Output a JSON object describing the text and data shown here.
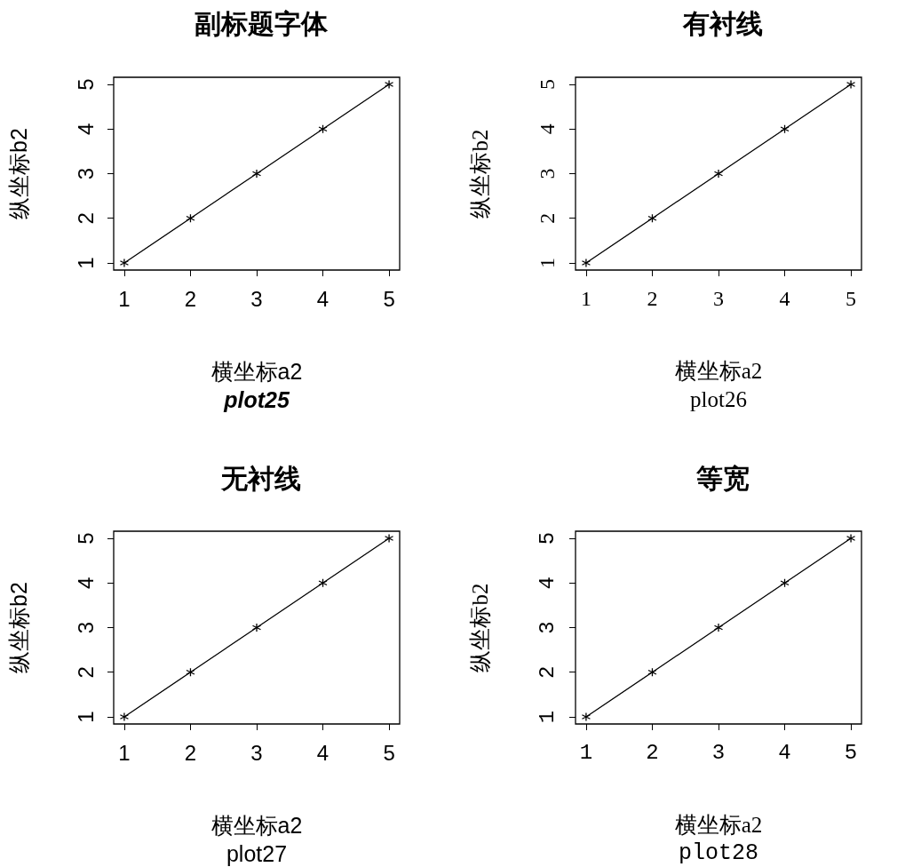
{
  "chart_data": [
    {
      "type": "line",
      "title": "副标题字体",
      "subtitle": "plot25",
      "xlabel": "横坐标a2",
      "ylabel": "纵坐标b2",
      "x": [
        1,
        2,
        3,
        4,
        5
      ],
      "values": [
        1,
        2,
        3,
        4,
        5
      ],
      "color": "#000000",
      "xlim": [
        0.84,
        5.16
      ],
      "ylim": [
        0.84,
        5.16
      ],
      "xticks": [
        1,
        2,
        3,
        4,
        5
      ],
      "yticks": [
        1,
        2,
        3,
        4,
        5
      ],
      "marker": "cross",
      "line_style": "solid",
      "grid": false
    },
    {
      "type": "line",
      "title": "有衬线",
      "subtitle": "plot26",
      "xlabel": "横坐标a2",
      "ylabel": "纵坐标b2",
      "x": [
        1,
        2,
        3,
        4,
        5
      ],
      "values": [
        1,
        2,
        3,
        4,
        5
      ],
      "color": "#000000",
      "xlim": [
        0.84,
        5.16
      ],
      "ylim": [
        0.84,
        5.16
      ],
      "xticks": [
        1,
        2,
        3,
        4,
        5
      ],
      "yticks": [
        1,
        2,
        3,
        4,
        5
      ],
      "marker": "cross",
      "line_style": "solid",
      "grid": false
    },
    {
      "type": "line",
      "title": "无衬线",
      "subtitle": "plot27",
      "xlabel": "横坐标a2",
      "ylabel": "纵坐标b2",
      "x": [
        1,
        2,
        3,
        4,
        5
      ],
      "values": [
        1,
        2,
        3,
        4,
        5
      ],
      "color": "#000000",
      "xlim": [
        0.84,
        5.16
      ],
      "ylim": [
        0.84,
        5.16
      ],
      "xticks": [
        1,
        2,
        3,
        4,
        5
      ],
      "yticks": [
        1,
        2,
        3,
        4,
        5
      ],
      "marker": "cross",
      "line_style": "solid",
      "grid": false
    },
    {
      "type": "line",
      "title": "等宽",
      "subtitle": "plot28",
      "xlabel": "横坐标a2",
      "ylabel": "纵坐标b2",
      "x": [
        1,
        2,
        3,
        4,
        5
      ],
      "values": [
        1,
        2,
        3,
        4,
        5
      ],
      "color": "#000000",
      "xlim": [
        0.84,
        5.16
      ],
      "ylim": [
        0.84,
        5.16
      ],
      "xticks": [
        1,
        2,
        3,
        4,
        5
      ],
      "yticks": [
        1,
        2,
        3,
        4,
        5
      ],
      "marker": "cross",
      "line_style": "solid",
      "grid": false
    }
  ]
}
